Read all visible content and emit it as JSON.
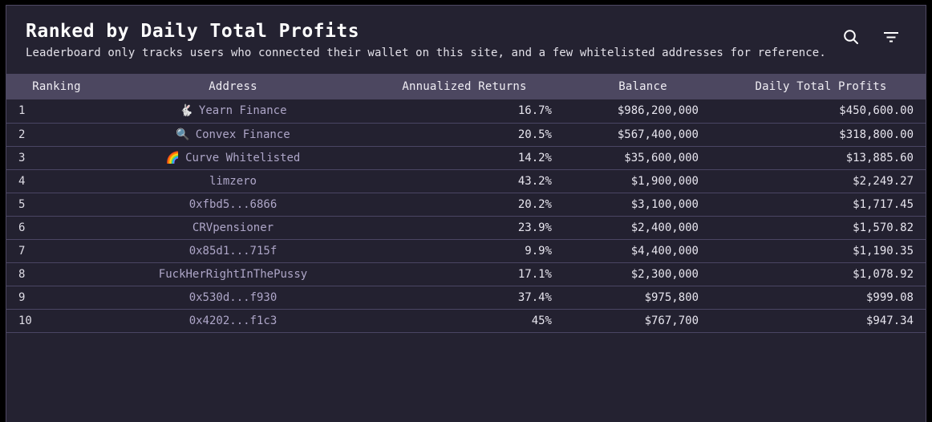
{
  "header": {
    "title": "Ranked by Daily Total Profits",
    "subtitle": "Leaderboard only tracks users who connected their wallet on this site, and a few whitelisted addresses for reference.",
    "action_icons": [
      {
        "name": "search-icon"
      },
      {
        "name": "filter-icon"
      }
    ]
  },
  "table": {
    "columns": [
      "Ranking",
      "Address",
      "Annualized Returns",
      "Balance",
      "Daily Total Profits"
    ],
    "rows": [
      {
        "ranking": "1",
        "address_icon": "🐇",
        "address_icon_name": "rabbit-emoji-icon",
        "address": "Yearn Finance",
        "annualized_returns": "16.7%",
        "balance": "$986,200,000",
        "daily_total_profits": "$450,600.00"
      },
      {
        "ranking": "2",
        "address_icon": "🔍",
        "address_icon_name": "magnifier-emoji-icon",
        "address": "Convex Finance",
        "annualized_returns": "20.5%",
        "balance": "$567,400,000",
        "daily_total_profits": "$318,800.00"
      },
      {
        "ranking": "3",
        "address_icon": "🌈",
        "address_icon_name": "rainbow-emoji-icon",
        "address": "Curve Whitelisted",
        "annualized_returns": "14.2%",
        "balance": "$35,600,000",
        "daily_total_profits": "$13,885.60"
      },
      {
        "ranking": "4",
        "address_icon": "",
        "address_icon_name": "",
        "address": "limzero",
        "annualized_returns": "43.2%",
        "balance": "$1,900,000",
        "daily_total_profits": "$2,249.27"
      },
      {
        "ranking": "5",
        "address_icon": "",
        "address_icon_name": "",
        "address": "0xfbd5...6866",
        "annualized_returns": "20.2%",
        "balance": "$3,100,000",
        "daily_total_profits": "$1,717.45"
      },
      {
        "ranking": "6",
        "address_icon": "",
        "address_icon_name": "",
        "address": "CRVpensioner",
        "annualized_returns": "23.9%",
        "balance": "$2,400,000",
        "daily_total_profits": "$1,570.82"
      },
      {
        "ranking": "7",
        "address_icon": "",
        "address_icon_name": "",
        "address": "0x85d1...715f",
        "annualized_returns": "9.9%",
        "balance": "$4,400,000",
        "daily_total_profits": "$1,190.35"
      },
      {
        "ranking": "8",
        "address_icon": "",
        "address_icon_name": "",
        "address": "FuckHerRightInThePussy",
        "annualized_returns": "17.1%",
        "balance": "$2,300,000",
        "daily_total_profits": "$1,078.92"
      },
      {
        "ranking": "9",
        "address_icon": "",
        "address_icon_name": "",
        "address": "0x530d...f930",
        "annualized_returns": "37.4%",
        "balance": "$975,800",
        "daily_total_profits": "$999.08"
      },
      {
        "ranking": "10",
        "address_icon": "",
        "address_icon_name": "",
        "address": "0x4202...f1c3",
        "annualized_returns": "45%",
        "balance": "$767,700",
        "daily_total_profits": "$947.34"
      }
    ]
  },
  "colors": {
    "page_bg": "#000000",
    "card_bg": "#242231",
    "card_border": "#4e4963",
    "header_row_bg": "#4c4760",
    "row_bg": "#232130",
    "row_border": "#4a4563",
    "title_text": "#ffffff",
    "subtitle_text": "#e3e1e9",
    "column_header_text": "#f0eef4",
    "rank_text": "#dfdde6",
    "address_text": "#aea6c8",
    "value_text": "#e7e5ee",
    "icon_color": "#ffffff"
  }
}
